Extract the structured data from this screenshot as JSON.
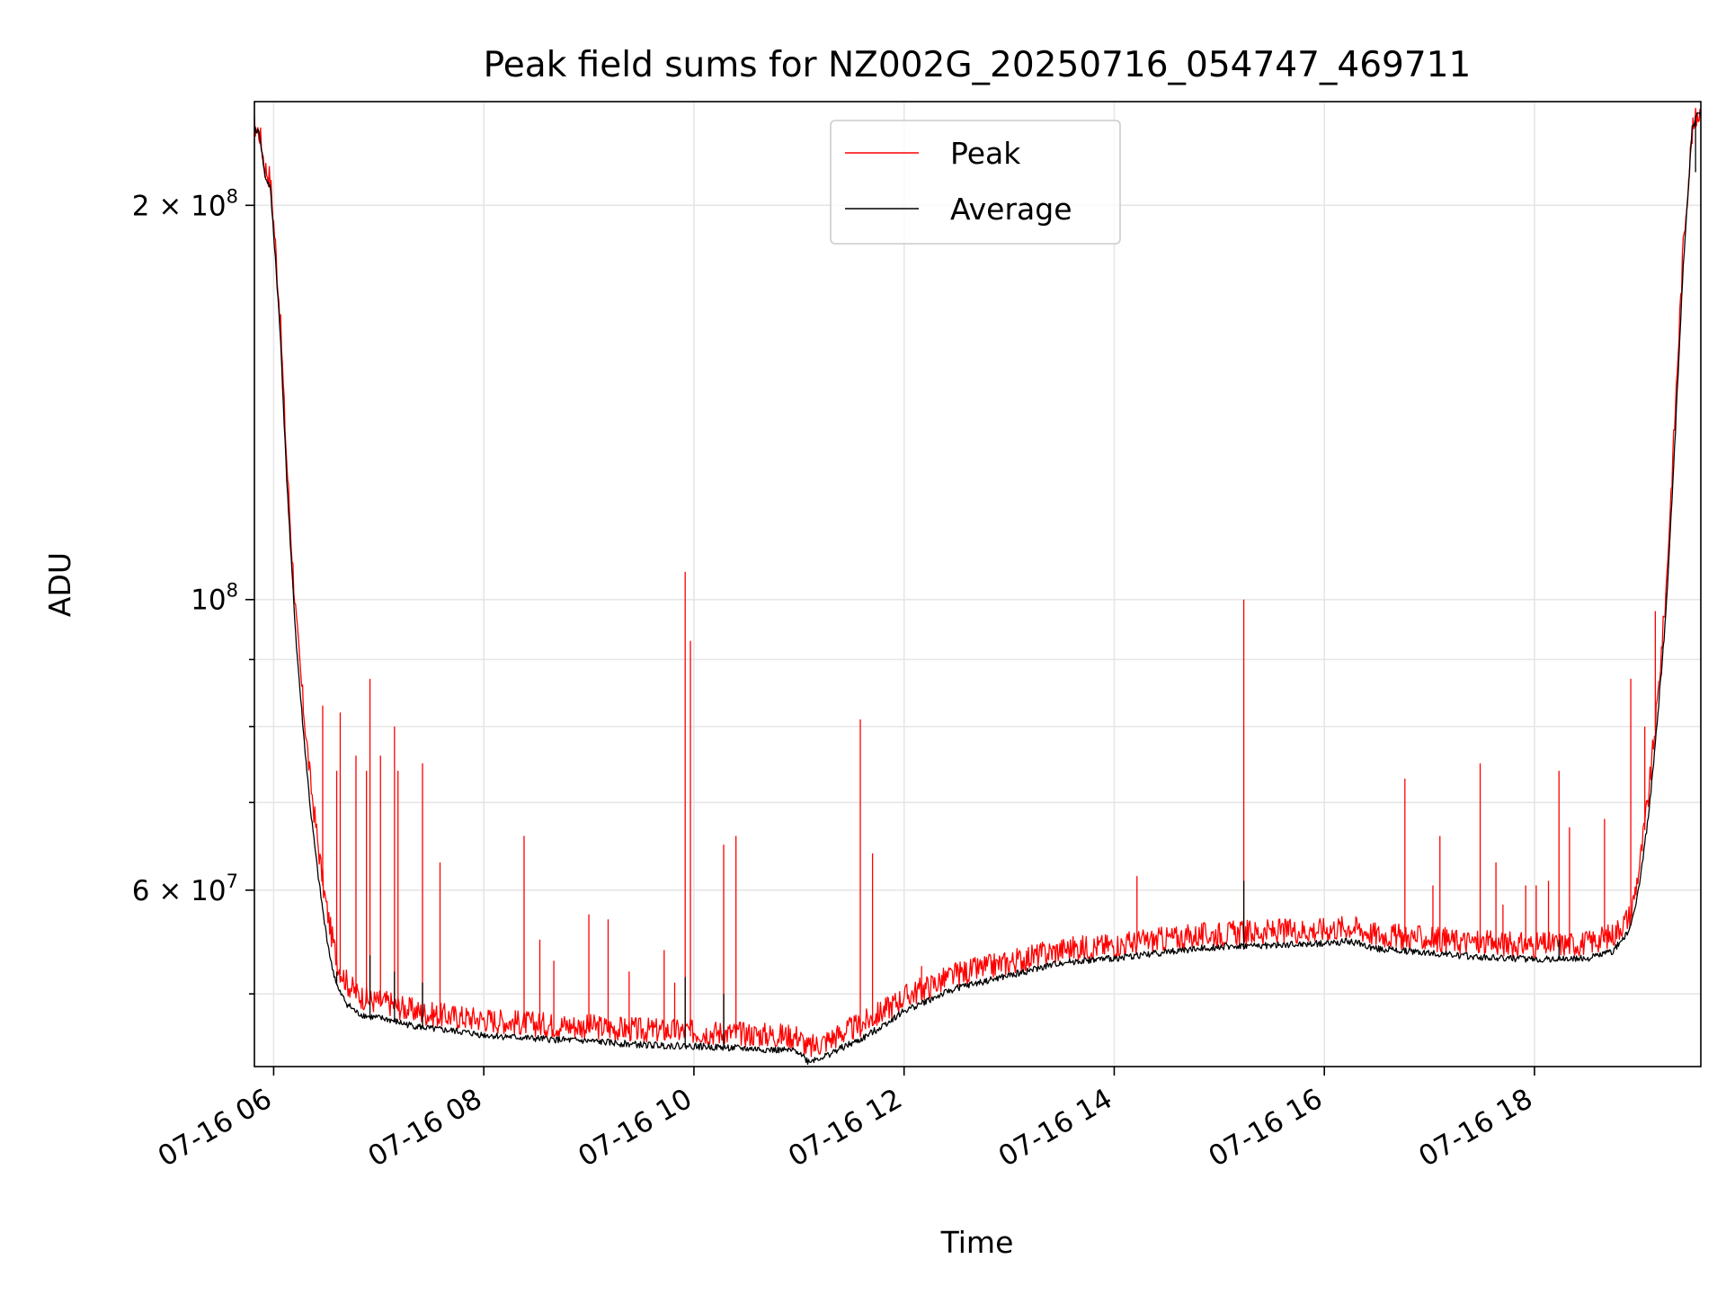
{
  "chart_data": {
    "type": "line",
    "title": "Peak field sums for NZ002G_20250716_054747_469711",
    "xlabel": "Time",
    "ylabel": "ADU",
    "y_scale": "log",
    "ylim": [
      44000000,
      240000000
    ],
    "xlim": [
      "2025-07-16 05:49",
      "2025-07-16 19:35"
    ],
    "x_tick_labels": [
      "07-16 06",
      "07-16 08",
      "07-16 10",
      "07-16 12",
      "07-16 14",
      "07-16 16",
      "07-16 18"
    ],
    "x_ticks": [
      "2025-07-16 06:00",
      "2025-07-16 08:00",
      "2025-07-16 10:00",
      "2025-07-16 12:00",
      "2025-07-16 14:00",
      "2025-07-16 16:00",
      "2025-07-16 18:00"
    ],
    "y_major_ticks": [
      {
        "value": 60000000,
        "label": "6 × 10⁷",
        "base": "6 × 10",
        "exp": "7"
      },
      {
        "value": 100000000,
        "label": "10⁸",
        "base": "10",
        "exp": "8"
      },
      {
        "value": 200000000,
        "label": "2 × 10⁸",
        "base": "2 × 10",
        "exp": "8"
      }
    ],
    "y_minor_grid": [
      50000000,
      70000000,
      80000000,
      90000000
    ],
    "grid": true,
    "legend_position": "upper center",
    "series": [
      {
        "name": "Peak",
        "color": "#ff0000",
        "points": [
          [
            "05:47",
            230000000
          ],
          [
            "05:52",
            225000000
          ],
          [
            "05:55",
            212000000
          ],
          [
            "05:58",
            208000000
          ],
          [
            "06:01",
            185000000
          ],
          [
            "06:04",
            160000000
          ],
          [
            "06:07",
            130000000
          ],
          [
            "06:10",
            110000000
          ],
          [
            "06:13",
            95000000
          ],
          [
            "06:17",
            82000000
          ],
          [
            "06:21",
            72000000
          ],
          [
            "06:25",
            65000000
          ],
          [
            "06:29",
            59000000
          ],
          [
            "06:33",
            55000000
          ],
          [
            "06:37",
            52000000
          ],
          [
            "06:42",
            50500000
          ],
          [
            "06:48",
            49500000
          ],
          [
            "06:55",
            49000000
          ],
          [
            "07:05",
            48800000
          ],
          [
            "07:15",
            48300000
          ],
          [
            "07:30",
            47800000
          ],
          [
            "07:45",
            47600000
          ],
          [
            "08:00",
            47400000
          ],
          [
            "08:30",
            47000000
          ],
          [
            "09:00",
            46800000
          ],
          [
            "09:30",
            46500000
          ],
          [
            "10:00",
            46400000
          ],
          [
            "10:30",
            46200000
          ],
          [
            "11:00",
            46000000
          ],
          [
            "11:05",
            45000000
          ],
          [
            "11:15",
            45600000
          ],
          [
            "11:25",
            46300000
          ],
          [
            "11:35",
            46900000
          ],
          [
            "11:45",
            47800000
          ],
          [
            "12:00",
            49300000
          ],
          [
            "12:30",
            51300000
          ],
          [
            "13:00",
            52400000
          ],
          [
            "13:30",
            53600000
          ],
          [
            "14:00",
            54000000
          ],
          [
            "14:30",
            54600000
          ],
          [
            "15:00",
            55100000
          ],
          [
            "15:30",
            55300000
          ],
          [
            "16:00",
            55500000
          ],
          [
            "16:15",
            55800000
          ],
          [
            "16:30",
            55000000
          ],
          [
            "17:00",
            54600000
          ],
          [
            "17:30",
            54200000
          ],
          [
            "18:00",
            54000000
          ],
          [
            "18:30",
            54200000
          ],
          [
            "18:45",
            55000000
          ],
          [
            "18:55",
            57000000
          ],
          [
            "19:00",
            62000000
          ],
          [
            "19:05",
            70000000
          ],
          [
            "19:10",
            82000000
          ],
          [
            "19:15",
            100000000
          ],
          [
            "19:20",
            135000000
          ],
          [
            "19:25",
            185000000
          ],
          [
            "19:30",
            225000000
          ],
          [
            "19:33",
            233000000
          ],
          [
            "19:35",
            233000000
          ]
        ],
        "spikes": [
          [
            "06:11",
            102000000
          ],
          [
            "06:28",
            83000000
          ],
          [
            "06:36",
            74000000
          ],
          [
            "06:38",
            82000000
          ],
          [
            "06:47",
            76000000
          ],
          [
            "06:53",
            74000000
          ],
          [
            "06:55",
            87000000
          ],
          [
            "07:01",
            76000000
          ],
          [
            "07:09",
            80000000
          ],
          [
            "07:11",
            74000000
          ],
          [
            "07:25",
            75000000
          ],
          [
            "07:35",
            63000000
          ],
          [
            "08:23",
            66000000
          ],
          [
            "08:32",
            55000000
          ],
          [
            "08:40",
            53000000
          ],
          [
            "09:00",
            57500000
          ],
          [
            "09:11",
            57000000
          ],
          [
            "09:23",
            52000000
          ],
          [
            "09:43",
            54000000
          ],
          [
            "09:49",
            51000000
          ],
          [
            "09:55",
            105000000
          ],
          [
            "09:58",
            93000000
          ],
          [
            "10:17",
            65000000
          ],
          [
            "10:24",
            66000000
          ],
          [
            "11:35",
            81000000
          ],
          [
            "11:42",
            64000000
          ],
          [
            "12:10",
            52500000
          ],
          [
            "14:13",
            61500000
          ],
          [
            "15:14",
            100000000
          ],
          [
            "16:46",
            73000000
          ],
          [
            "17:02",
            60500000
          ],
          [
            "17:06",
            66000000
          ],
          [
            "17:29",
            75000000
          ],
          [
            "17:38",
            63000000
          ],
          [
            "17:42",
            58500000
          ],
          [
            "17:55",
            60500000
          ],
          [
            "18:01",
            60500000
          ],
          [
            "18:08",
            61000000
          ],
          [
            "18:14",
            74000000
          ],
          [
            "18:20",
            67000000
          ],
          [
            "18:40",
            68000000
          ],
          [
            "18:55",
            87000000
          ],
          [
            "19:03",
            80000000
          ],
          [
            "19:09",
            98000000
          ]
        ]
      },
      {
        "name": "Average",
        "color": "#000000",
        "points": [
          [
            "05:47",
            231000000
          ],
          [
            "05:52",
            226000000
          ],
          [
            "05:55",
            210000000
          ],
          [
            "05:58",
            206000000
          ],
          [
            "06:01",
            182000000
          ],
          [
            "06:04",
            157000000
          ],
          [
            "06:07",
            127000000
          ],
          [
            "06:10",
            107000000
          ],
          [
            "06:13",
            92000000
          ],
          [
            "06:17",
            79000000
          ],
          [
            "06:21",
            69000000
          ],
          [
            "06:25",
            62000000
          ],
          [
            "06:29",
            56500000
          ],
          [
            "06:33",
            52500000
          ],
          [
            "06:37",
            50200000
          ],
          [
            "06:42",
            49000000
          ],
          [
            "06:48",
            48200000
          ],
          [
            "06:55",
            47900000
          ],
          [
            "07:05",
            47700000
          ],
          [
            "07:15",
            47300000
          ],
          [
            "07:30",
            46900000
          ],
          [
            "07:45",
            46700000
          ],
          [
            "08:00",
            46400000
          ],
          [
            "08:30",
            46100000
          ],
          [
            "09:00",
            45900000
          ],
          [
            "09:30",
            45600000
          ],
          [
            "10:00",
            45500000
          ],
          [
            "10:30",
            45300000
          ],
          [
            "11:00",
            45100000
          ],
          [
            "11:05",
            44300000
          ],
          [
            "11:15",
            44700000
          ],
          [
            "11:25",
            45400000
          ],
          [
            "11:35",
            46000000
          ],
          [
            "11:45",
            46900000
          ],
          [
            "12:00",
            48400000
          ],
          [
            "12:30",
            50400000
          ],
          [
            "13:00",
            51500000
          ],
          [
            "13:30",
            52700000
          ],
          [
            "14:00",
            53100000
          ],
          [
            "14:30",
            53700000
          ],
          [
            "15:00",
            54200000
          ],
          [
            "15:30",
            54300000
          ],
          [
            "16:00",
            54500000
          ],
          [
            "16:15",
            54700000
          ],
          [
            "16:30",
            54000000
          ],
          [
            "17:00",
            53600000
          ],
          [
            "17:30",
            53200000
          ],
          [
            "18:00",
            53000000
          ],
          [
            "18:30",
            53100000
          ],
          [
            "18:45",
            53800000
          ],
          [
            "18:55",
            56000000
          ],
          [
            "19:00",
            60500000
          ],
          [
            "19:05",
            68000000
          ],
          [
            "19:10",
            80000000
          ],
          [
            "19:15",
            97000000
          ],
          [
            "19:20",
            130000000
          ],
          [
            "19:25",
            180000000
          ],
          [
            "19:30",
            228000000
          ],
          [
            "19:33",
            234000000
          ],
          [
            "19:35",
            234000000
          ]
        ],
        "spikes": [
          [
            "06:36",
            52000000
          ],
          [
            "06:55",
            53500000
          ],
          [
            "07:09",
            52000000
          ],
          [
            "07:25",
            51000000
          ],
          [
            "09:55",
            51500000
          ],
          [
            "10:17",
            50000000
          ],
          [
            "15:14",
            61000000
          ],
          [
            "18:14",
            55000000
          ],
          [
            "19:32",
            212000000
          ]
        ]
      }
    ]
  }
}
